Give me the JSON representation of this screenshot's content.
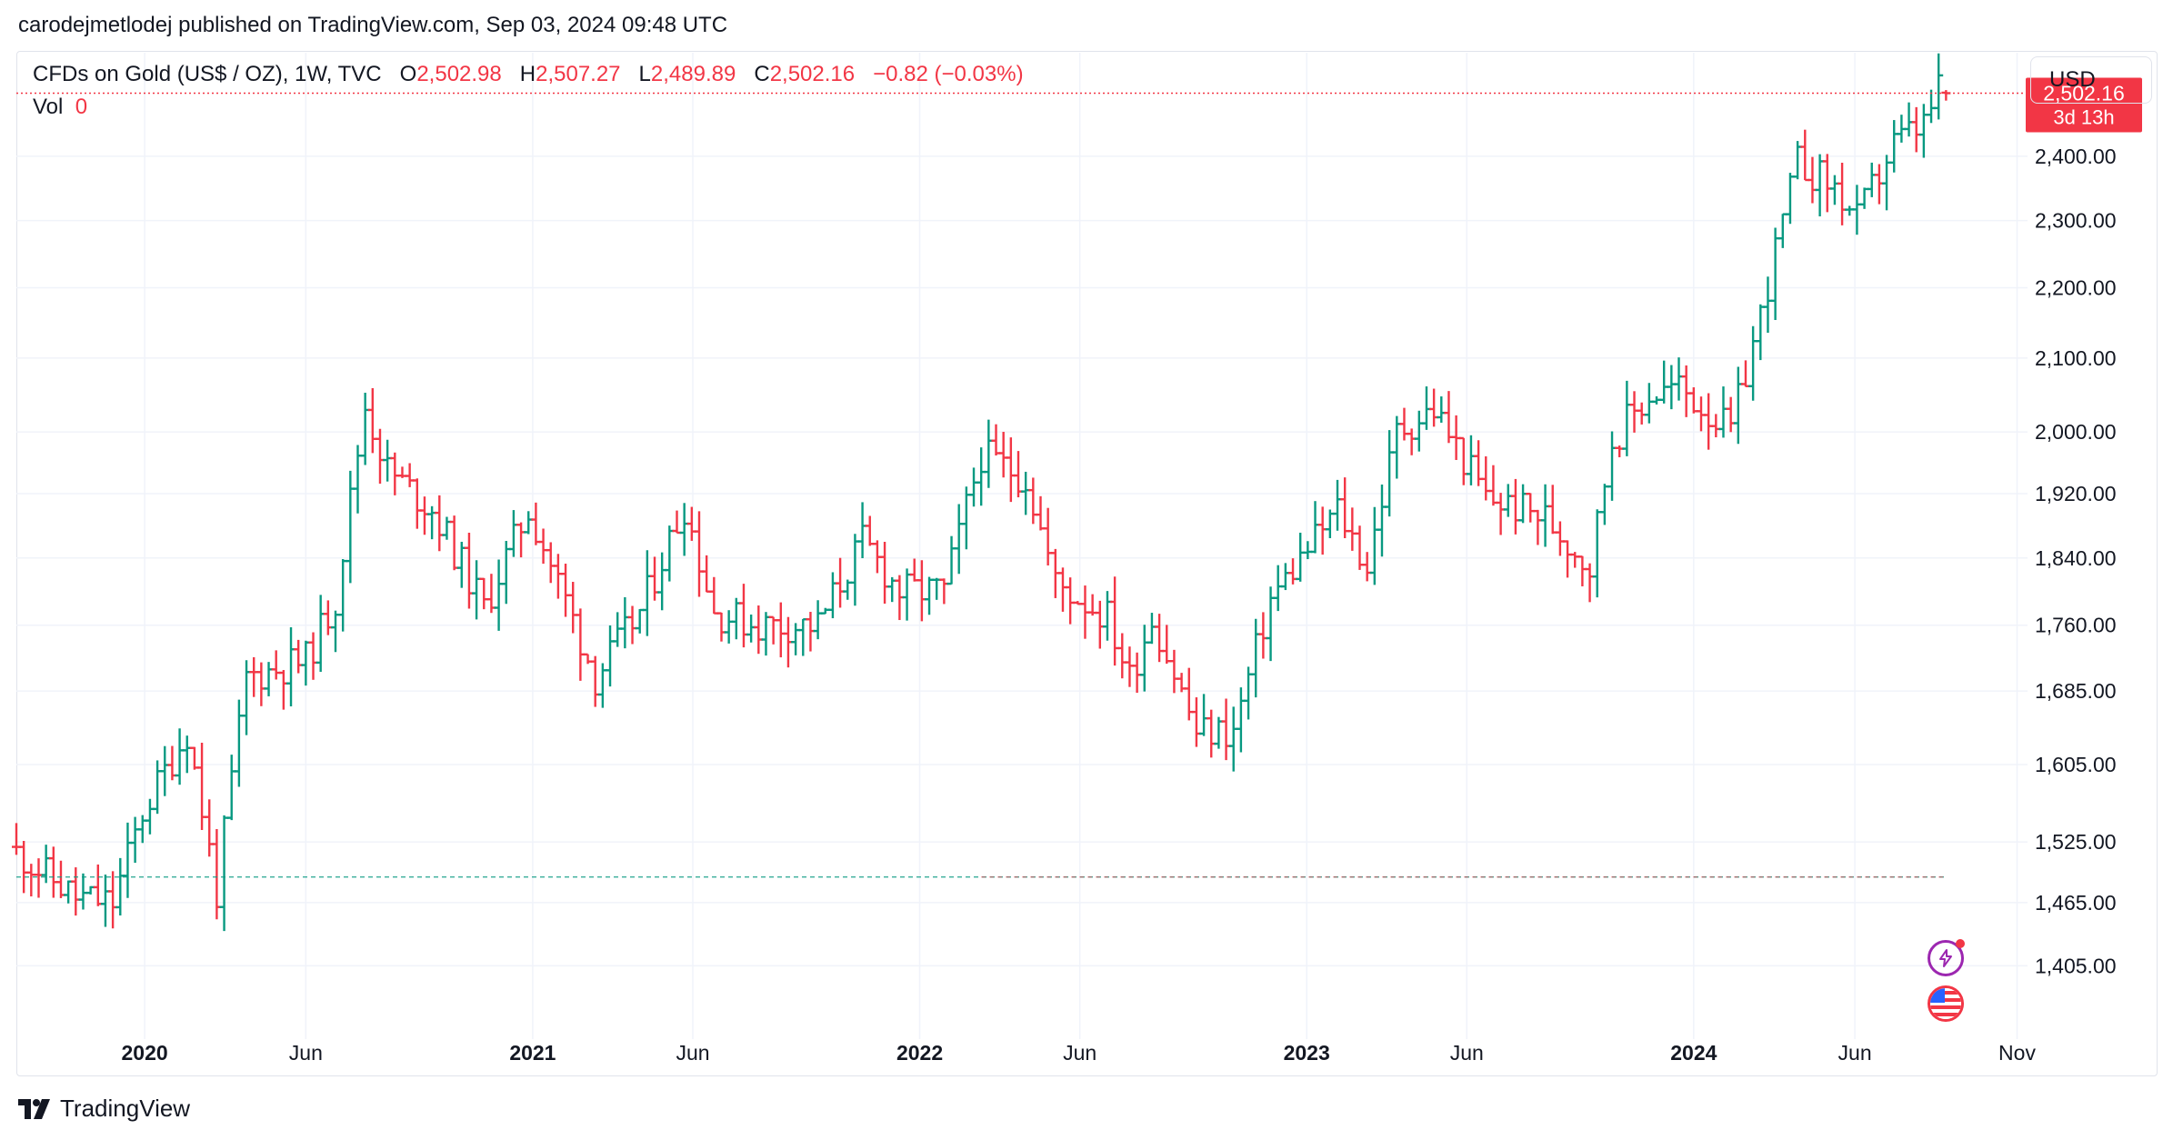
{
  "header": {
    "publisher": "carodejmetlodej published on TradingView.com, Sep 03, 2024 09:48 UTC"
  },
  "legend": {
    "symbol": "CFDs on Gold (US$ / OZ), 1W, TVC",
    "o_label": "O",
    "o_value": "2,502.98",
    "h_label": "H",
    "h_value": "2,507.27",
    "l_label": "L",
    "l_value": "2,489.89",
    "c_label": "C",
    "c_value": "2,502.16",
    "change": "−0.82 (−0.03%)",
    "vol_label": "Vol",
    "vol_value": "0"
  },
  "currency": "USD",
  "price_tag": {
    "price": "2,502.16",
    "countdown": "3d 13h"
  },
  "brand": "TradingView",
  "icons": [
    "lightning-icon",
    "us-flag-icon"
  ],
  "colors": {
    "up": "#089981",
    "down": "#f23645",
    "grid": "#f0f3fa",
    "axis_text": "#131722"
  },
  "chart_data": {
    "type": "ohlc",
    "interval": "1W",
    "y_scale": "log",
    "ylim": [
      1345,
      2570
    ],
    "yticks": [
      {
        "value": 2400,
        "label": "2,400.00"
      },
      {
        "value": 2300,
        "label": "2,300.00"
      },
      {
        "value": 2200,
        "label": "2,200.00"
      },
      {
        "value": 2100,
        "label": "2,100.00"
      },
      {
        "value": 2000,
        "label": "2,000.00"
      },
      {
        "value": 1920,
        "label": "1,920.00"
      },
      {
        "value": 1840,
        "label": "1,840.00"
      },
      {
        "value": 1760,
        "label": "1,760.00"
      },
      {
        "value": 1685,
        "label": "1,685.00"
      },
      {
        "value": 1605,
        "label": "1,605.00"
      },
      {
        "value": 1525,
        "label": "1,525.00"
      },
      {
        "value": 1465,
        "label": "1,465.00"
      },
      {
        "value": 1405,
        "label": "1,405.00"
      }
    ],
    "xlim": [
      "2019-09-02",
      "2024-11-04"
    ],
    "xticks": [
      {
        "date": "2020-01-01",
        "label": "2020",
        "bold": true
      },
      {
        "date": "2020-06-01",
        "label": "Jun",
        "bold": false
      },
      {
        "date": "2021-01-01",
        "label": "2021",
        "bold": true
      },
      {
        "date": "2021-06-01",
        "label": "Jun",
        "bold": false
      },
      {
        "date": "2022-01-01",
        "label": "2022",
        "bold": true
      },
      {
        "date": "2022-06-01",
        "label": "Jun",
        "bold": false
      },
      {
        "date": "2023-01-01",
        "label": "2023",
        "bold": true
      },
      {
        "date": "2023-06-01",
        "label": "Jun",
        "bold": false
      },
      {
        "date": "2024-01-01",
        "label": "2024",
        "bold": true
      },
      {
        "date": "2024-06-01",
        "label": "Jun",
        "bold": false
      },
      {
        "date": "2024-11-01",
        "label": "Nov",
        "bold": false
      }
    ],
    "first_bar_date": "2019-09-02",
    "last_price": 2502.16,
    "range_start_price": 1490,
    "anchors": [
      [
        "2019-09-02",
        1520
      ],
      [
        "2019-11-04",
        1470
      ],
      [
        "2019-12-09",
        1465
      ],
      [
        "2020-01-06",
        1555
      ],
      [
        "2020-02-17",
        1640
      ],
      [
        "2020-03-16",
        1475
      ],
      [
        "2020-04-13",
        1700
      ],
      [
        "2020-06-08",
        1720
      ],
      [
        "2020-07-06",
        1790
      ],
      [
        "2020-08-03",
        2035
      ],
      [
        "2020-08-24",
        1950
      ],
      [
        "2020-10-05",
        1900
      ],
      [
        "2020-11-23",
        1780
      ],
      [
        "2021-01-04",
        1900
      ],
      [
        "2021-03-08",
        1700
      ],
      [
        "2021-04-19",
        1775
      ],
      [
        "2021-05-31",
        1905
      ],
      [
        "2021-06-28",
        1775
      ],
      [
        "2021-08-09",
        1760
      ],
      [
        "2021-10-04",
        1760
      ],
      [
        "2021-11-15",
        1860
      ],
      [
        "2021-12-20",
        1800
      ],
      [
        "2022-01-31",
        1800
      ],
      [
        "2022-03-07",
        1970
      ],
      [
        "2022-04-18",
        1940
      ],
      [
        "2022-05-16",
        1810
      ],
      [
        "2022-07-04",
        1770
      ],
      [
        "2022-07-25",
        1700
      ],
      [
        "2022-08-15",
        1770
      ],
      [
        "2022-09-26",
        1640
      ],
      [
        "2022-10-31",
        1640
      ],
      [
        "2022-12-05",
        1790
      ],
      [
        "2023-02-06",
        1900
      ],
      [
        "2023-03-06",
        1830
      ],
      [
        "2023-04-03",
        2000
      ],
      [
        "2023-05-08",
        2030
      ],
      [
        "2023-06-26",
        1915
      ],
      [
        "2023-08-21",
        1890
      ],
      [
        "2023-10-02",
        1830
      ],
      [
        "2023-10-23",
        1990
      ],
      [
        "2023-11-27",
        2050
      ],
      [
        "2023-12-25",
        2060
      ],
      [
        "2024-02-12",
        2000
      ],
      [
        "2024-03-11",
        2160
      ],
      [
        "2024-04-15",
        2390
      ],
      [
        "2024-05-20",
        2350
      ],
      [
        "2024-06-10",
        2300
      ],
      [
        "2024-07-15",
        2420
      ],
      [
        "2024-08-12",
        2450
      ],
      [
        "2024-08-26",
        2505
      ]
    ]
  }
}
